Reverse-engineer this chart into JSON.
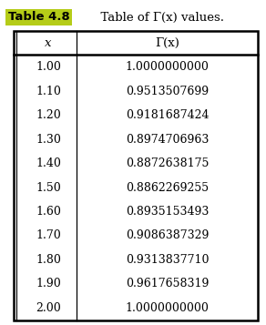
{
  "title_label": "Table 4.8",
  "title_desc": "  Table of Γ(x) values.",
  "title_bg_color": "#b5cc18",
  "col_headers": [
    "x",
    "Γ(x)"
  ],
  "rows": [
    [
      "1.00",
      "1.0000000000"
    ],
    [
      "1.10",
      "0.9513507699"
    ],
    [
      "1.20",
      "0.9181687424"
    ],
    [
      "1.30",
      "0.8974706963"
    ],
    [
      "1.40",
      "0.8872638175"
    ],
    [
      "1.50",
      "0.8862269255"
    ],
    [
      "1.60",
      "0.8935153493"
    ],
    [
      "1.70",
      "0.9086387329"
    ],
    [
      "1.80",
      "0.9313837710"
    ],
    [
      "1.90",
      "0.9617658319"
    ],
    [
      "2.00",
      "1.0000000000"
    ]
  ],
  "bg_color": "#ffffff",
  "header_font_size": 9,
  "data_font_size": 9,
  "title_font_size": 9.5,
  "fig_width": 2.92,
  "fig_height": 3.57,
  "dpi": 100
}
